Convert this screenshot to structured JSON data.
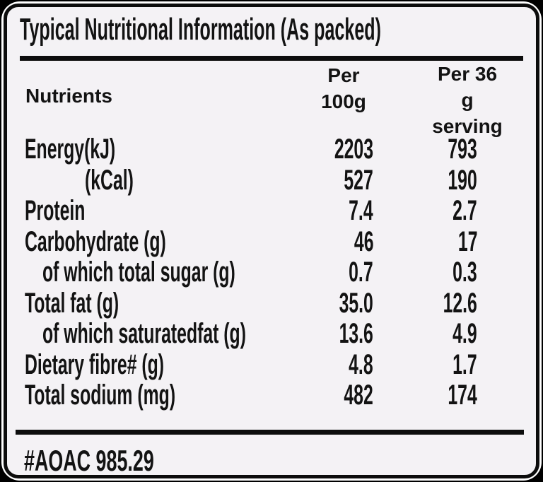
{
  "title": "Typical Nutritional Information (As packed)",
  "colors": {
    "frame": "#000000",
    "ring": "#ffffff",
    "panel_bg": "#f4f2f5",
    "text": "#131313",
    "rule": "#0d0d0d"
  },
  "table": {
    "headers": {
      "col1": "Nutrients",
      "col2": [
        "Per",
        "100g"
      ],
      "col3": [
        "Per 36 g",
        "serving"
      ]
    },
    "rows": [
      {
        "label": "Energy(kJ)",
        "indent": 0,
        "per100": "2203",
        "per36": "793"
      },
      {
        "label": "(kCal)",
        "indent": 2,
        "per100": "527",
        "per36": "190"
      },
      {
        "label": "Protein",
        "indent": 0,
        "per100": "7.4",
        "per36": "2.7"
      },
      {
        "label": "Carbohydrate (g)",
        "indent": 0,
        "per100": "46",
        "per36": "17"
      },
      {
        "label": "of which total sugar (g)",
        "indent": 1,
        "per100": "0.7",
        "per36": "0.3"
      },
      {
        "label": "Total fat (g)",
        "indent": 0,
        "per100": "35.0",
        "per36": "12.6"
      },
      {
        "label": "of which saturatedfat (g)",
        "indent": 1,
        "per100": "13.6",
        "per36": "4.9"
      },
      {
        "label": "Dietary fibre# (g)",
        "indent": 0,
        "per100": "4.8",
        "per36": "1.7"
      },
      {
        "label": "Total sodium (mg)",
        "indent": 0,
        "per100": "482",
        "per36": "174"
      }
    ]
  },
  "footnote": "#AOAC 985.29"
}
